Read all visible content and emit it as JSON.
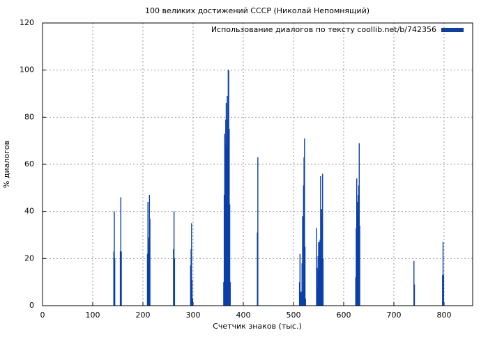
{
  "chart_data": {
    "type": "bar",
    "title": "100 великих достижений СССР (Николай Непомнящий)",
    "xlabel": "Счетчик знаков (тыс.)",
    "ylabel": "% диалогов",
    "series": [
      {
        "name": "Использование диалогов по тексту coollib.net/b/742356",
        "color": "#0b3fa8",
        "x": [
          142,
          143,
          144,
          155,
          156,
          157,
          209,
          210,
          211,
          212,
          213,
          214,
          261,
          262,
          263,
          295,
          296,
          297,
          298,
          299,
          361,
          362,
          363,
          364,
          365,
          366,
          367,
          368,
          369,
          370,
          371,
          372,
          373,
          374,
          428,
          429,
          512,
          513,
          514,
          515,
          516,
          517,
          518,
          519,
          520,
          521,
          522,
          523,
          524,
          546,
          547,
          548,
          549,
          550,
          551,
          552,
          553,
          554,
          555,
          556,
          557,
          558,
          559,
          624,
          625,
          626,
          627,
          628,
          629,
          630,
          631,
          632,
          740,
          741,
          797,
          798,
          799
        ],
        "values": [
          23,
          40,
          20,
          23,
          46,
          23,
          22,
          44,
          29,
          25,
          47,
          37,
          24,
          40,
          20,
          17,
          24,
          35,
          11,
          3,
          10,
          47,
          73,
          69,
          79,
          86,
          67,
          89,
          79,
          100,
          100,
          75,
          43,
          10,
          31,
          63,
          10,
          22,
          5,
          6,
          3,
          18,
          38,
          6,
          51,
          63,
          71,
          25,
          3,
          33,
          16,
          8,
          21,
          27,
          15,
          27,
          28,
          55,
          20,
          41,
          36,
          56,
          20,
          12,
          33,
          54,
          44,
          40,
          47,
          51,
          69,
          34,
          19,
          9,
          13,
          27,
          13
        ]
      }
    ],
    "xlim": [
      0,
      857
    ],
    "ylim": [
      0,
      120
    ],
    "xticks": [
      0,
      100,
      200,
      300,
      400,
      500,
      600,
      700,
      800
    ],
    "yticks": [
      0,
      20,
      40,
      60,
      80,
      100,
      120
    ],
    "grid": true,
    "legend": "top-right"
  }
}
